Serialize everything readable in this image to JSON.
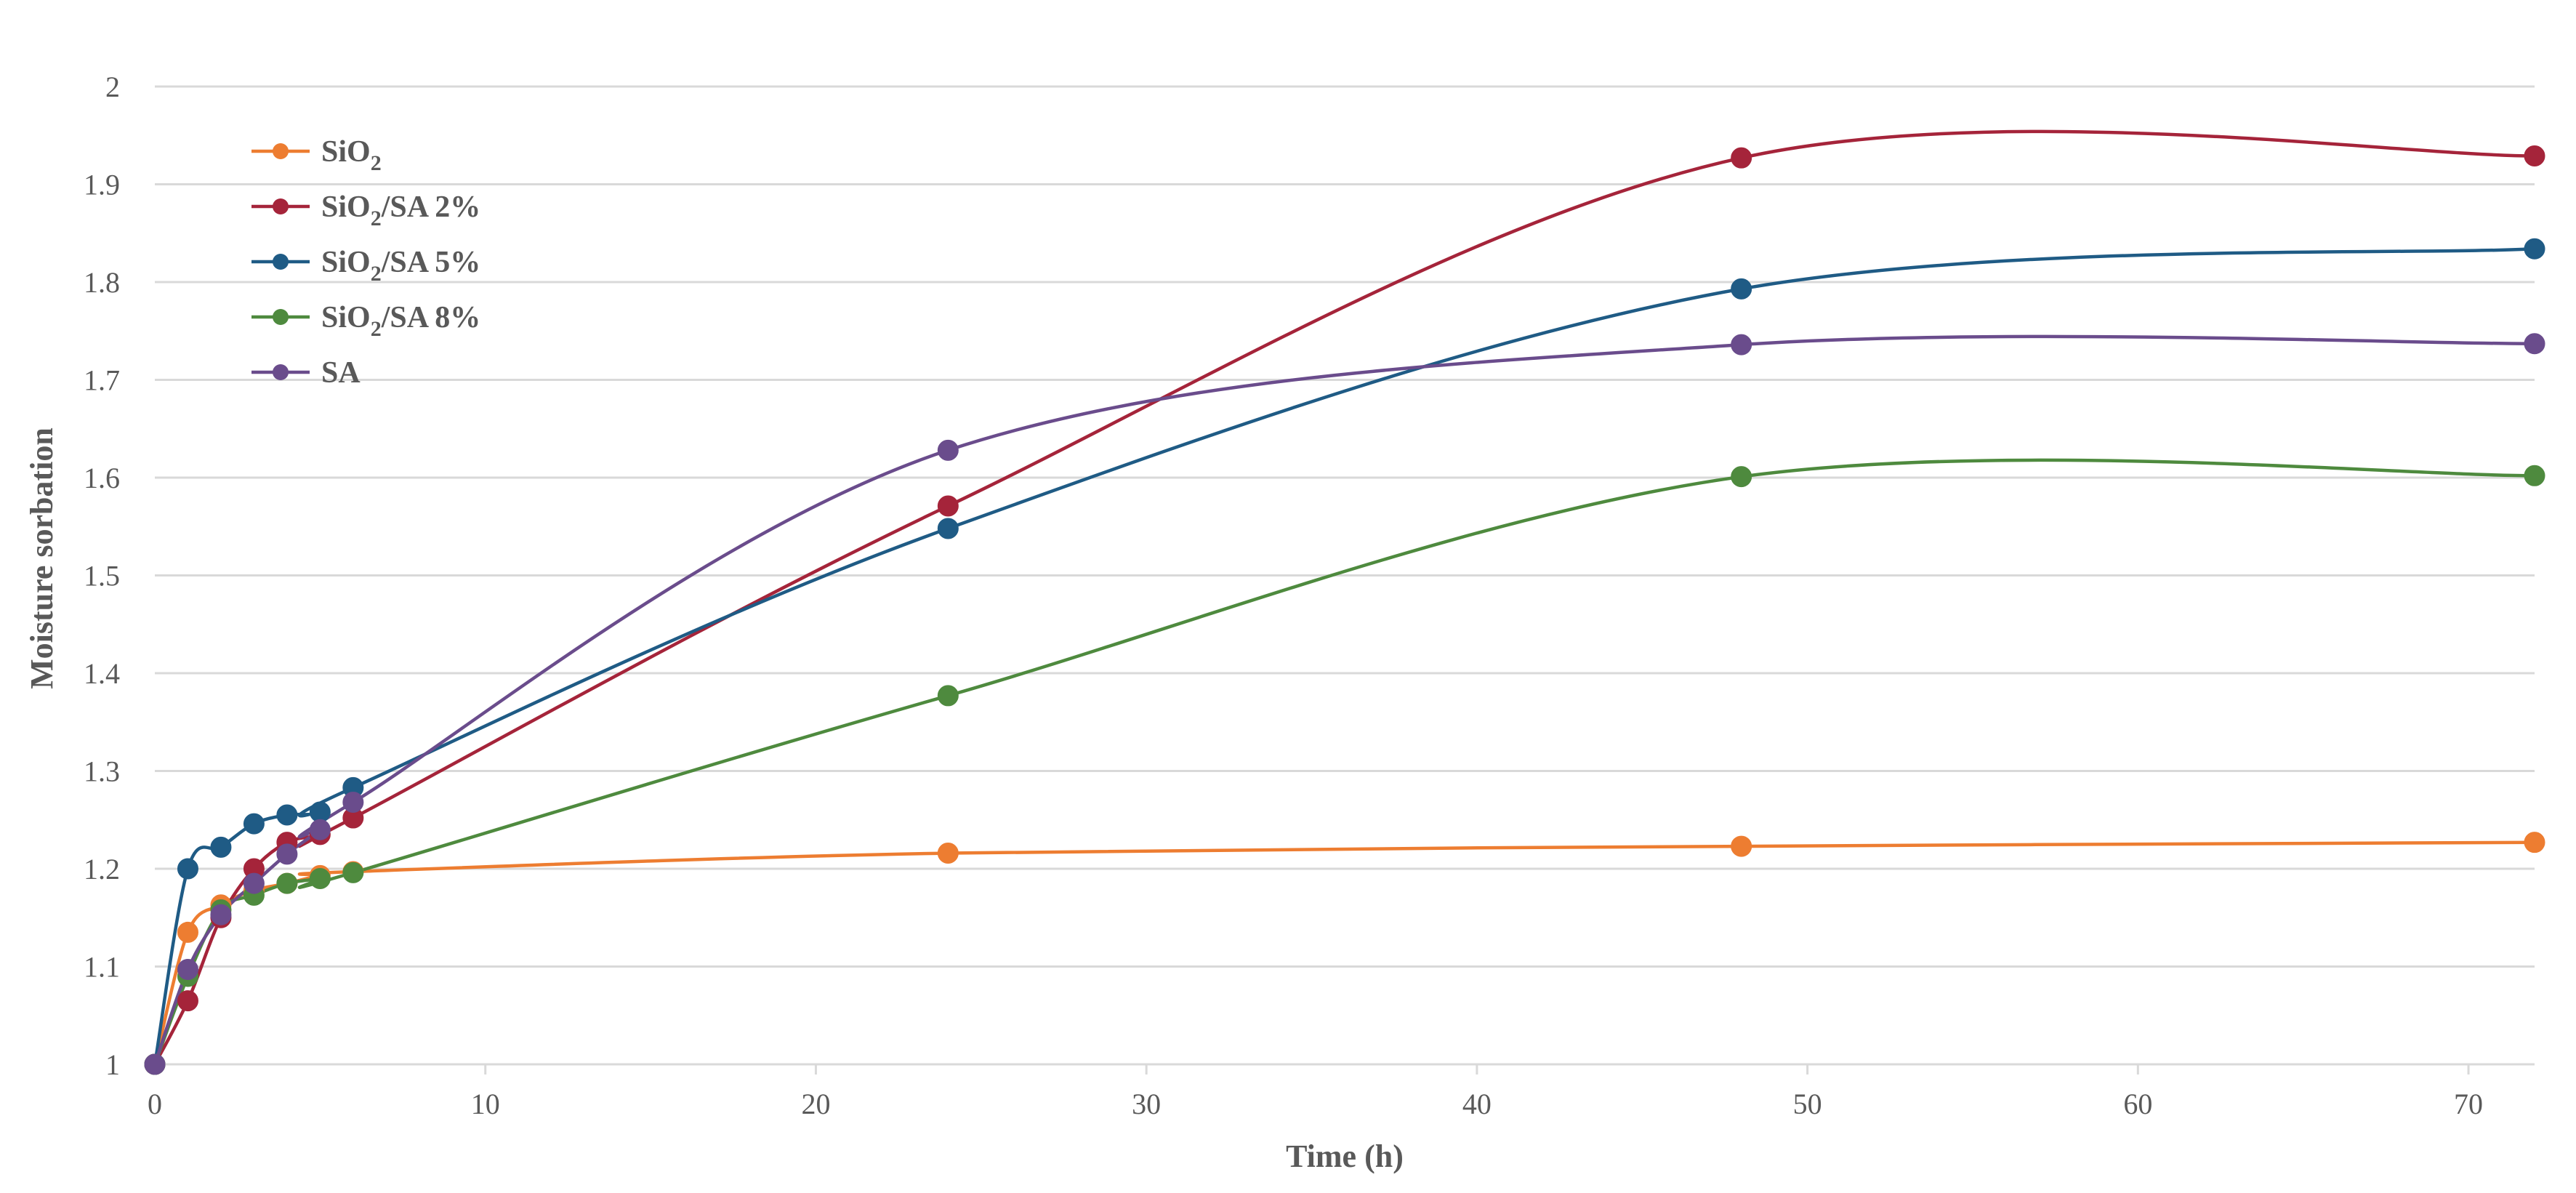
{
  "chart_data": {
    "type": "line",
    "title": "",
    "xlabel": "Time (h)",
    "ylabel": "Moisture sorbation",
    "xlim": [
      0,
      72
    ],
    "ylim": [
      1,
      2
    ],
    "xticks": [
      0,
      10,
      20,
      30,
      40,
      50,
      60,
      70
    ],
    "yticks": [
      1,
      1.1,
      1.2,
      1.3,
      1.4,
      1.5,
      1.6,
      1.7,
      1.8,
      1.9,
      2
    ],
    "x": [
      0,
      1,
      2,
      3,
      4,
      5,
      6,
      24,
      48,
      72
    ],
    "grid": "horizontal",
    "legend_position": "top-left",
    "smooth": true,
    "series": [
      {
        "name_main": "SiO",
        "name_sub": "2",
        "name_rest": "",
        "color": "#ed7d31",
        "values": [
          1.0,
          1.135,
          1.163,
          1.178,
          1.185,
          1.193,
          1.197,
          1.216,
          1.223,
          1.227
        ]
      },
      {
        "name_main": "SiO",
        "name_sub": "2",
        "name_rest": "/SA 2%",
        "color": "#a5243a",
        "values": [
          1.0,
          1.065,
          1.15,
          1.2,
          1.227,
          1.235,
          1.252,
          1.571,
          1.927,
          1.929
        ]
      },
      {
        "name_main": "SiO",
        "name_sub": "2",
        "name_rest": "/SA 5%",
        "color": "#1f5b85",
        "values": [
          1.0,
          1.2,
          1.222,
          1.246,
          1.255,
          1.258,
          1.283,
          1.548,
          1.793,
          1.834
        ]
      },
      {
        "name_main": "SiO",
        "name_sub": "2",
        "name_rest": "/SA 8%",
        "color": "#4e8a3e",
        "values": [
          1.0,
          1.09,
          1.158,
          1.173,
          1.185,
          1.19,
          1.196,
          1.377,
          1.601,
          1.602
        ]
      },
      {
        "name_main": "SA",
        "name_sub": "",
        "name_rest": "",
        "color": "#6a4c8c",
        "values": [
          1.0,
          1.097,
          1.153,
          1.185,
          1.215,
          1.24,
          1.268,
          1.628,
          1.736,
          1.737
        ]
      }
    ]
  }
}
